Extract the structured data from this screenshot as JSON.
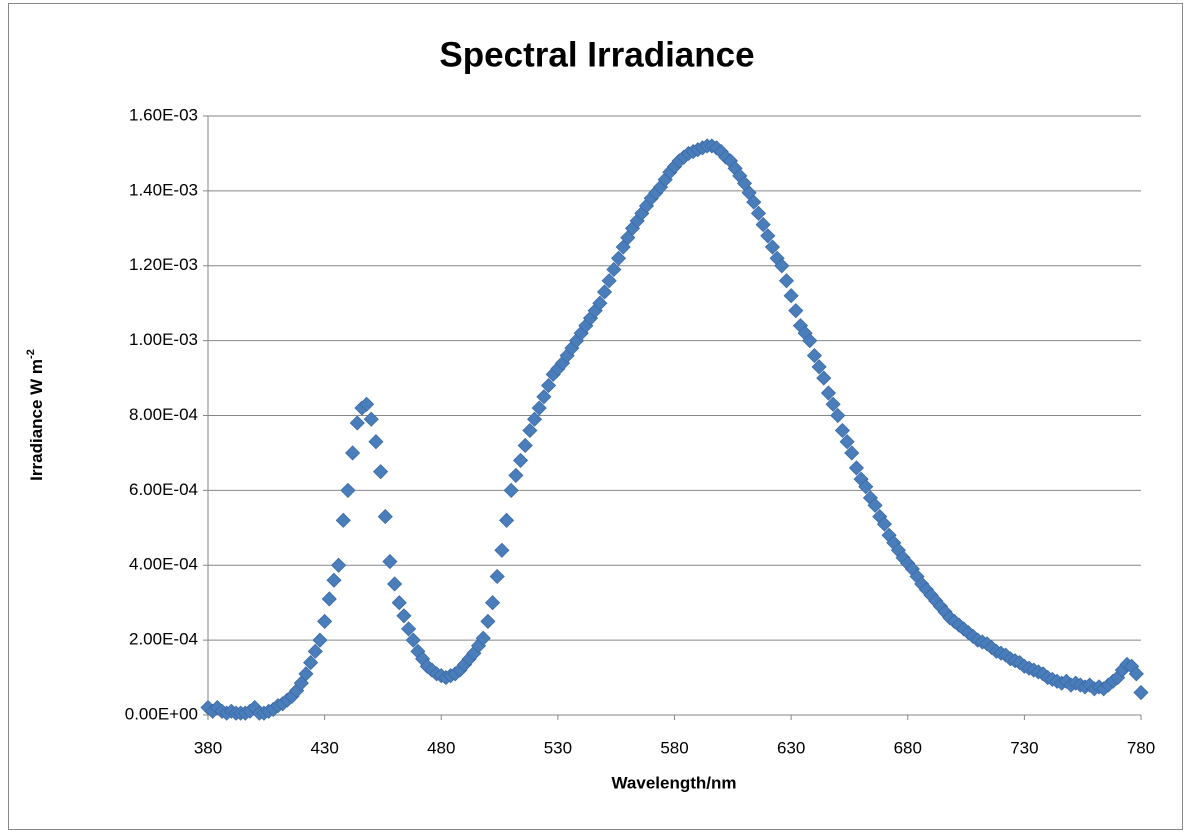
{
  "chart_data": {
    "type": "scatter",
    "title": "Spectral Irradiance",
    "x_label": "Wavelength/nm",
    "y_label": "Irradiance W m",
    "y_label_superscript": "-2",
    "marker": "diamond",
    "color": "#4a7ebb",
    "grid": true,
    "xlim": [
      380,
      780
    ],
    "xticks": [
      380,
      430,
      480,
      530,
      580,
      630,
      680,
      730,
      780
    ],
    "ylim": [
      0,
      0.0016
    ],
    "yticks": [
      {
        "value": 0,
        "label": "0.00E+00"
      },
      {
        "value": 0.0002,
        "label": "2.00E-04"
      },
      {
        "value": 0.0004,
        "label": "4.00E-04"
      },
      {
        "value": 0.0006,
        "label": "6.00E-04"
      },
      {
        "value": 0.0008,
        "label": "8.00E-04"
      },
      {
        "value": 0.001,
        "label": "1.00E-03"
      },
      {
        "value": 0.0012,
        "label": "1.20E-03"
      },
      {
        "value": 0.0014,
        "label": "1.40E-03"
      },
      {
        "value": 0.0016,
        "label": "1.60E-03"
      }
    ],
    "x": [
      380,
      382,
      384,
      386,
      388,
      390,
      392,
      394,
      396,
      398,
      400,
      402,
      404,
      406,
      408,
      410,
      412,
      414,
      416,
      418,
      420,
      422,
      424,
      426,
      428,
      430,
      432,
      434,
      436,
      438,
      440,
      442,
      444,
      446,
      448,
      450,
      452,
      454,
      456,
      458,
      460,
      462,
      464,
      466,
      468,
      470,
      472,
      474,
      476,
      478,
      480,
      482,
      484,
      486,
      488,
      490,
      492,
      494,
      496,
      498,
      500,
      502,
      504,
      506,
      508,
      510,
      512,
      514,
      516,
      518,
      520,
      522,
      524,
      526,
      528,
      530,
      532,
      534,
      536,
      538,
      540,
      542,
      544,
      546,
      548,
      550,
      552,
      554,
      556,
      558,
      560,
      562,
      564,
      566,
      568,
      570,
      572,
      574,
      576,
      578,
      580,
      582,
      584,
      586,
      588,
      590,
      592,
      594,
      596,
      598,
      600,
      602,
      604,
      606,
      608,
      610,
      612,
      614,
      616,
      618,
      620,
      622,
      624,
      626,
      628,
      630,
      632,
      634,
      636,
      638,
      640,
      642,
      644,
      646,
      648,
      650,
      652,
      654,
      656,
      658,
      660,
      662,
      664,
      666,
      668,
      670,
      672,
      674,
      676,
      678,
      680,
      682,
      684,
      686,
      688,
      690,
      692,
      694,
      696,
      698,
      700,
      702,
      704,
      706,
      708,
      710,
      712,
      714,
      716,
      718,
      720,
      722,
      724,
      726,
      728,
      730,
      732,
      734,
      736,
      738,
      740,
      742,
      744,
      746,
      748,
      750,
      752,
      754,
      756,
      758,
      760,
      762,
      764,
      766,
      768,
      770,
      772,
      774,
      776,
      778,
      780
    ],
    "values": [
      2e-05,
      1e-05,
      2e-05,
      1e-05,
      5e-06,
      1e-05,
      5e-06,
      5e-06,
      5e-06,
      1e-05,
      2e-05,
      5e-06,
      5e-06,
      1e-05,
      1.5e-05,
      2.5e-05,
      3e-05,
      4e-05,
      5e-05,
      6.5e-05,
      8.5e-05,
      0.00011,
      0.00014,
      0.00017,
      0.0002,
      0.00025,
      0.00031,
      0.00036,
      0.0004,
      0.00052,
      0.0006,
      0.0007,
      0.00078,
      0.00082,
      0.00083,
      0.00079,
      0.00073,
      0.00065,
      0.00053,
      0.00041,
      0.00035,
      0.0003,
      0.000265,
      0.00023,
      0.0002,
      0.00017,
      0.00015,
      0.00013,
      0.00012,
      0.00011,
      0.000105,
      0.0001,
      0.000105,
      0.00011,
      0.00012,
      0.000135,
      0.00015,
      0.000165,
      0.000185,
      0.000205,
      0.00025,
      0.0003,
      0.00037,
      0.00044,
      0.00052,
      0.0006,
      0.00064,
      0.00068,
      0.00072,
      0.00076,
      0.00079,
      0.00082,
      0.00085,
      0.00088,
      0.00091,
      0.000925,
      0.00094,
      0.00096,
      0.00098,
      0.001,
      0.00102,
      0.00104,
      0.00106,
      0.00108,
      0.0011,
      0.00113,
      0.00116,
      0.00119,
      0.00122,
      0.00125,
      0.001275,
      0.0013,
      0.00132,
      0.00134,
      0.00136,
      0.00138,
      0.001395,
      0.00141,
      0.00143,
      0.00145,
      0.001465,
      0.00148,
      0.00149,
      0.0015,
      0.001505,
      0.00151,
      0.001515,
      0.00152,
      0.00152,
      0.001515,
      0.001505,
      0.00149,
      0.00148,
      0.00146,
      0.00144,
      0.00142,
      0.001395,
      0.00137,
      0.00134,
      0.00131,
      0.00128,
      0.00125,
      0.00122,
      0.0012,
      0.00116,
      0.00112,
      0.00108,
      0.00104,
      0.00102,
      0.001,
      0.00096,
      0.00093,
      0.0009,
      0.00086,
      0.00083,
      0.0008,
      0.00076,
      0.00073,
      0.0007,
      0.00066,
      0.00063,
      0.00061,
      0.00058,
      0.00056,
      0.00053,
      0.00051,
      0.00048,
      0.00046,
      0.00044,
      0.00042,
      0.000405,
      0.00039,
      0.00037,
      0.00035,
      0.000335,
      0.00032,
      0.000305,
      0.00029,
      0.000275,
      0.00026,
      0.00025,
      0.00024,
      0.00023,
      0.00022,
      0.00021,
      0.0002,
      0.000195,
      0.00019,
      0.00018,
      0.00017,
      0.000165,
      0.00016,
      0.00015,
      0.000145,
      0.00014,
      0.00013,
      0.000125,
      0.00012,
      0.000115,
      0.00011,
      0.0001,
      9.5e-05,
      9e-05,
      8.5e-05,
      9e-05,
      8e-05,
      8.5e-05,
      8e-05,
      7.5e-05,
      8e-05,
      7e-05,
      7.5e-05,
      7e-05,
      8e-05,
      9e-05,
      0.0001,
      0.00012,
      0.000135,
      0.00013,
      0.00011,
      6e-05
    ]
  }
}
